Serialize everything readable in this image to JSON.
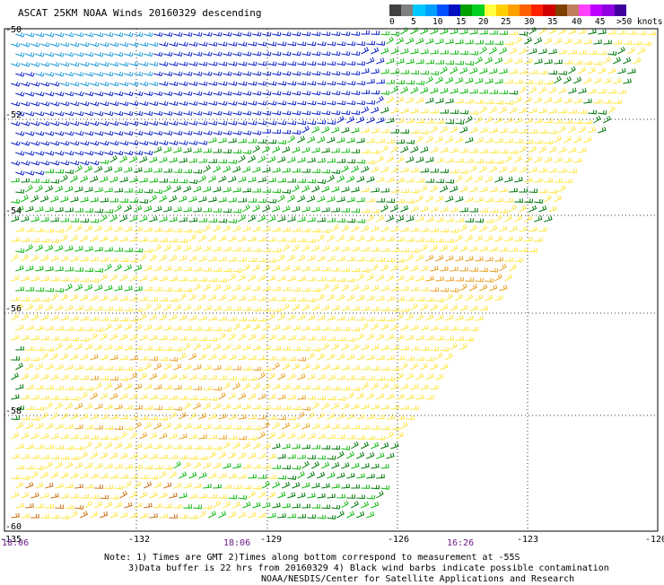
{
  "title": "ASCAT 25KM NOAA Winds 20160329 descending",
  "legend": {
    "colors": [
      "#404040",
      "#808080",
      "#00c8ff",
      "#00a0ff",
      "#0050ff",
      "#0010c0",
      "#00a000",
      "#00d020",
      "#ffff40",
      "#ffd000",
      "#ffa000",
      "#ff6000",
      "#ff2000",
      "#d00000",
      "#804000",
      "#c08060",
      "#ff40ff",
      "#c000ff",
      "#9000e0",
      "#4000a0"
    ],
    "ticks": [
      "0",
      "5",
      "10",
      "15",
      "20",
      "25",
      "30",
      "35",
      "40",
      "45",
      ">50 knots"
    ]
  },
  "axes": {
    "lat_labels": [
      "-50",
      "-52",
      "-54",
      "-56",
      "-58",
      "-60"
    ],
    "lon_labels": [
      "-135",
      "-132",
      "-129",
      "-126",
      "-123",
      "-120"
    ],
    "time_labels": [
      "18:06",
      "18:06",
      "16:26"
    ]
  },
  "wind_colors": {
    "blue": "#0a1fc8",
    "light_blue": "#1a9ad8",
    "dark_green": "#00780a",
    "green": "#10b810",
    "yellow": "#ffe640",
    "orange": "#e8a020",
    "dark_orange": "#c87014"
  },
  "notes": {
    "line1": "Note: 1) Times are GMT 2)Times along bottom correspond to measurement at -55S",
    "line2": "3)Data buffer is 22 hrs from 20160329 4) Black wind barbs indicate possible contamination",
    "line3": "NOAA/NESDIS/Center for Satellite Applications and Research"
  }
}
